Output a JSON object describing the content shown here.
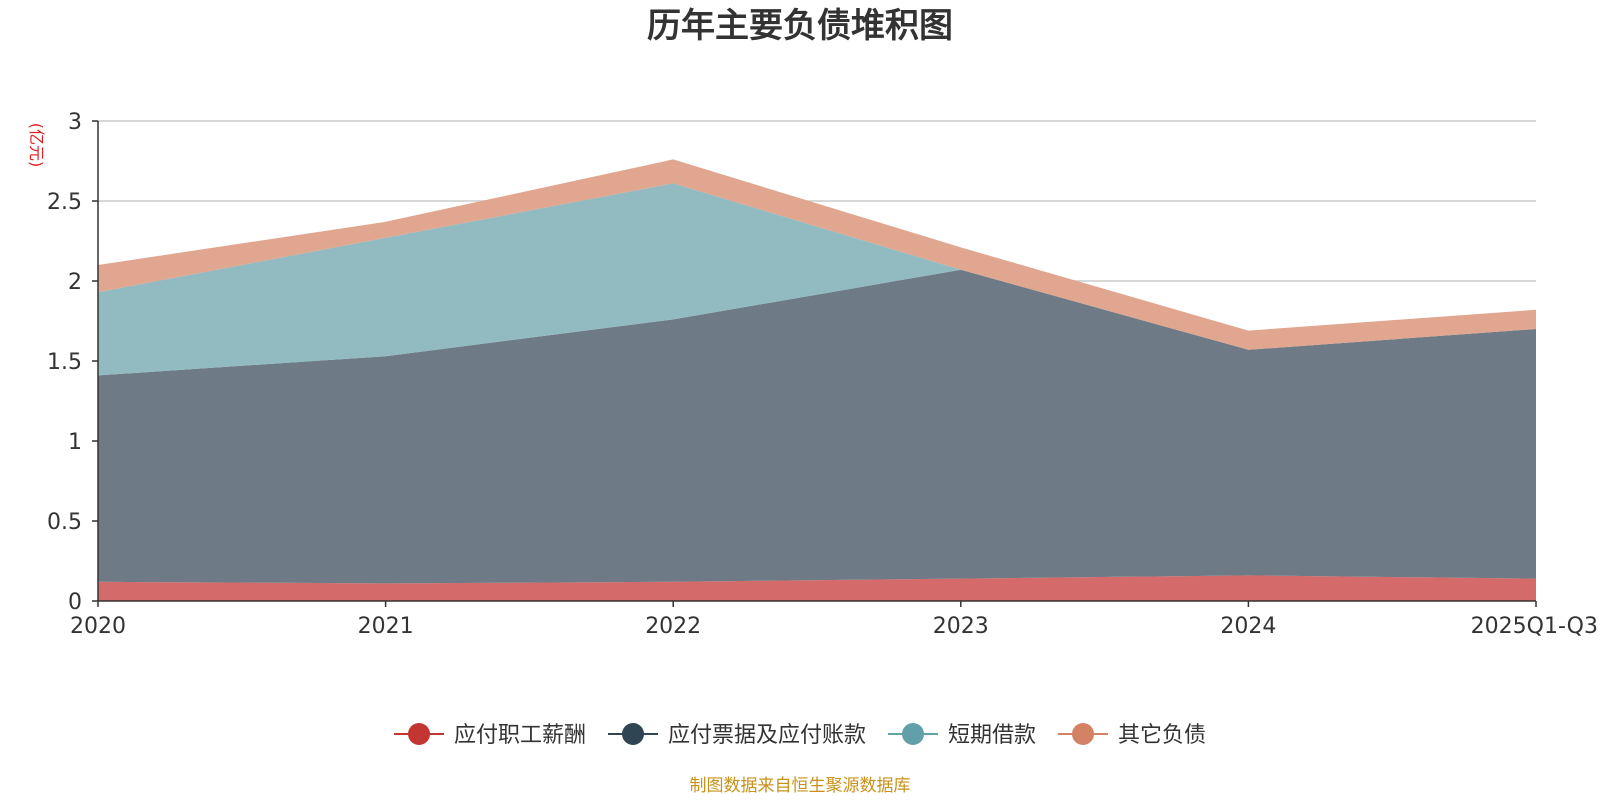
{
  "chart_data": {
    "type": "area",
    "stacked": true,
    "title": "历年主要负债堆积图",
    "ylabel": "(亿元)",
    "xlabel": "",
    "categories": [
      "2020",
      "2021",
      "2022",
      "2023",
      "2024",
      "2025Q1-Q3"
    ],
    "ylim": [
      0,
      3
    ],
    "yticks": [
      0,
      0.5,
      1,
      1.5,
      2,
      2.5,
      3
    ],
    "ytick_labels": [
      "0",
      "0.5",
      "1",
      "1.5",
      "2",
      "2.5",
      "3"
    ],
    "grid": true,
    "legend_position": "bottom-center",
    "series": [
      {
        "name": "应付职工薪酬",
        "color": "#c23531",
        "fill": "#d46a6a",
        "values": [
          0.12,
          0.11,
          0.12,
          0.14,
          0.16,
          0.14
        ]
      },
      {
        "name": "应付票据及应付账款",
        "color": "#2f4554",
        "fill": "#6e7b86",
        "values": [
          1.29,
          1.42,
          1.64,
          1.93,
          1.41,
          1.56
        ]
      },
      {
        "name": "短期借款",
        "color": "#61a0a8",
        "fill": "#91bac1",
        "values": [
          0.52,
          0.74,
          0.85,
          0.0,
          0.0,
          0.0
        ]
      },
      {
        "name": "其它负债",
        "color": "#d48265",
        "fill": "#e0a690",
        "values": [
          0.17,
          0.1,
          0.15,
          0.14,
          0.12,
          0.12
        ]
      }
    ]
  },
  "footer": {
    "source": "制图数据来自恒生聚源数据库"
  }
}
